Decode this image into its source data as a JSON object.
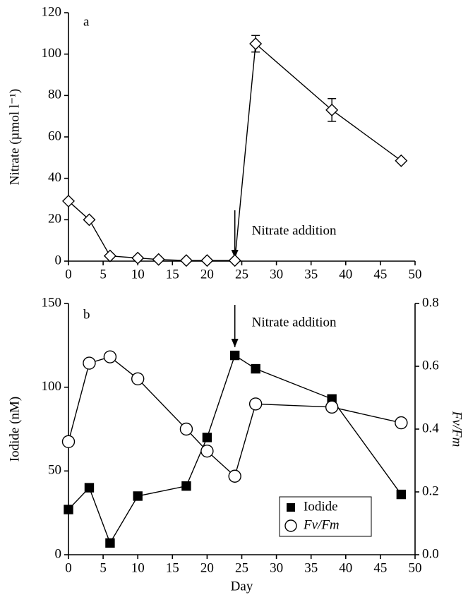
{
  "chart_data": [
    {
      "type": "line",
      "label": "a",
      "ylabel": "Nitrate (µmol l⁻¹)",
      "x": [
        0,
        3,
        6,
        10,
        13,
        17,
        20,
        24,
        27,
        38,
        48
      ],
      "series": [
        {
          "name": "Nitrate",
          "color": "#000000",
          "marker": "diamond",
          "values": [
            29,
            20,
            2.5,
            1.5,
            0.8,
            0.3,
            0.3,
            0.3,
            105,
            73,
            48.5
          ],
          "errors": [
            null,
            null,
            null,
            null,
            null,
            null,
            null,
            null,
            4,
            5.5,
            null
          ]
        }
      ],
      "xlim": [
        0,
        50
      ],
      "xticks": [
        0,
        5,
        10,
        15,
        20,
        25,
        30,
        35,
        40,
        45,
        50
      ],
      "ylim": [
        0,
        120
      ],
      "yticks": [
        0,
        20,
        40,
        60,
        80,
        100,
        120
      ],
      "annotations": [
        {
          "text": "Nitrate addition",
          "x": 24
        }
      ]
    },
    {
      "type": "line",
      "label": "b",
      "xlabel": "Day",
      "ylabel": "Iodide (nM)",
      "y2label": "Fv/Fm",
      "x": [
        0,
        3,
        6,
        10,
        17,
        20,
        24,
        27,
        38,
        48
      ],
      "series": [
        {
          "name": "Iodide",
          "color": "#000000",
          "marker": "square",
          "values": [
            27,
            40,
            7,
            35,
            41,
            70,
            119,
            111,
            93,
            36
          ]
        },
        {
          "name": "Fv/Fm",
          "color": "#000000",
          "marker": "circle",
          "axis": "y2",
          "values": [
            0.36,
            0.61,
            0.63,
            0.56,
            0.4,
            0.33,
            0.25,
            0.48,
            0.47,
            0.42
          ]
        }
      ],
      "xlim": [
        0,
        50
      ],
      "xticks": [
        0,
        5,
        10,
        15,
        20,
        25,
        30,
        35,
        40,
        45,
        50
      ],
      "ylim": [
        0,
        150
      ],
      "yticks": [
        0,
        50,
        100,
        150
      ],
      "y2lim": [
        0,
        0.8
      ],
      "y2ticks": [
        {
          "value": 0,
          "label": "0.0"
        },
        0.2,
        0.4,
        0.6,
        0.8
      ],
      "legend": "lower right",
      "annotations": [
        {
          "text": "Nitrate addition",
          "x": 24
        }
      ]
    }
  ]
}
